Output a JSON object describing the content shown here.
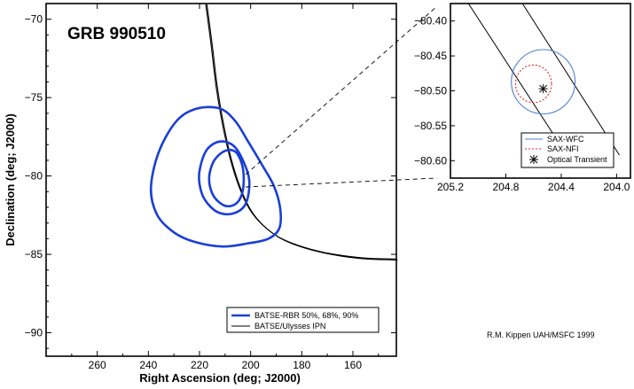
{
  "chart_data": [
    {
      "type": "line",
      "title": "GRB 990510",
      "xlabel": "Right Ascension (deg; J2000)",
      "ylabel": "Declination (deg; J2000)",
      "xlim": [
        280,
        143
      ],
      "ylim": [
        -91.5,
        -69
      ],
      "xticks": [
        260,
        240,
        220,
        200,
        180,
        160
      ],
      "yticks": [
        -70,
        -75,
        -80,
        -85,
        -90
      ],
      "xtick_labels": [
        "260",
        "240",
        "220",
        "200",
        "180",
        "160"
      ],
      "ytick_labels": [
        "−70",
        "−75",
        "−80",
        "−85",
        "−90"
      ],
      "grid": false,
      "legend_position": "bottom-right",
      "legend": [
        "BATSE-RBR 50%, 68%, 90%",
        "BATSE/Ulysses IPN"
      ],
      "colors": {
        "batse": "#1a3fd6",
        "ipn": "#000000"
      },
      "series": [
        {
          "name": "BATSE-RBR 50%, 68%, 90%",
          "style": "contours",
          "contours": [
            {
              "level": "50%",
              "points": [
                [
                  216,
                  -79.8
                ],
                [
                  214,
                  -78.95
                ],
                [
                  210,
                  -78.4
                ],
                [
                  206,
                  -78.45
                ],
                [
                  203.5,
                  -79.2
                ],
                [
                  202.7,
                  -80.2
                ],
                [
                  203.5,
                  -81.2
                ],
                [
                  206,
                  -81.8
                ],
                [
                  210,
                  -81.9
                ],
                [
                  214,
                  -81.4
                ],
                [
                  216,
                  -80.6
                ],
                [
                  216,
                  -79.8
                ]
              ]
            },
            {
              "level": "68%",
              "points": [
                [
                  219.8,
                  -79.5
                ],
                [
                  217,
                  -78.3
                ],
                [
                  212,
                  -77.8
                ],
                [
                  206.5,
                  -78.1
                ],
                [
                  202.5,
                  -79.2
                ],
                [
                  200.5,
                  -80.4
                ],
                [
                  202,
                  -81.8
                ],
                [
                  207,
                  -82.4
                ],
                [
                  213,
                  -82.3
                ],
                [
                  218,
                  -81.5
                ],
                [
                  220,
                  -80.5
                ],
                [
                  219.8,
                  -79.5
                ]
              ]
            },
            {
              "level": "90%",
              "points": [
                [
                  239,
                  -80.8
                ],
                [
                  236,
                  -78.5
                ],
                [
                  229,
                  -76.5
                ],
                [
                  221,
                  -75.7
                ],
                [
                  212,
                  -75.7
                ],
                [
                  206,
                  -76.5
                ],
                [
                  201,
                  -77.8
                ],
                [
                  195.5,
                  -79.3
                ],
                [
                  191,
                  -80.6
                ],
                [
                  188.5,
                  -82
                ],
                [
                  188.7,
                  -83.3
                ],
                [
                  193,
                  -84
                ],
                [
                  201,
                  -84.3
                ],
                [
                  211,
                  -84.5
                ],
                [
                  222,
                  -84.2
                ],
                [
                  230,
                  -83.6
                ],
                [
                  236.5,
                  -82.5
                ],
                [
                  239,
                  -80.8
                ]
              ]
            }
          ]
        },
        {
          "name": "BATSE/Ulysses IPN",
          "style": "annulus",
          "points": [
            [
              217.6,
              -69
            ],
            [
              215.5,
              -71.6
            ],
            [
              213.5,
              -74.3
            ],
            [
              211,
              -76.7
            ],
            [
              208,
              -78.9
            ],
            [
              204.5,
              -80.7
            ],
            [
              200.5,
              -82.1
            ],
            [
              195.5,
              -83.1
            ],
            [
              189,
              -83.9
            ],
            [
              181,
              -84.45
            ],
            [
              172,
              -84.85
            ],
            [
              163,
              -85.1
            ],
            [
              154,
              -85.25
            ],
            [
              143,
              -85.3
            ]
          ],
          "offset": [
            -0.5,
            -0.06
          ]
        }
      ],
      "annotation": "R.M. Kippen  UAH/MSFC 1999"
    },
    {
      "type": "line",
      "title": "",
      "xlabel": "",
      "ylabel": "",
      "xlim": [
        205.2,
        203.9
      ],
      "ylim": [
        -80.625,
        -80.375
      ],
      "xticks": [
        205.2,
        204.8,
        204.4,
        204.0
      ],
      "yticks": [
        -80.4,
        -80.45,
        -80.5,
        -80.55,
        -80.6
      ],
      "xtick_labels": [
        "205.2",
        "204.8",
        "204.4",
        "204.0"
      ],
      "ytick_labels": [
        "−80.40",
        "−80.45",
        "−80.50",
        "−80.55",
        "−80.60"
      ],
      "grid": false,
      "legend_position": "bottom-right",
      "legend": [
        "SAX-WFC",
        "SAX-NFI",
        "Optical Transient"
      ],
      "colors": {
        "wfc": "#4f7fd4",
        "nfi": "#e0242a",
        "ot": "#000000"
      },
      "series": [
        {
          "name": "SAX-WFC",
          "style": "ellipse",
          "center": [
            204.53,
            -80.487
          ],
          "radius_x": 0.23,
          "radius_y": 0.046
        },
        {
          "name": "SAX-NFI",
          "style": "ellipse",
          "center": [
            204.6,
            -80.49
          ],
          "radius_x": 0.13,
          "radius_y": 0.027
        },
        {
          "name": "Optical Transient",
          "style": "marker",
          "x": [
            204.53
          ],
          "y": [
            -80.497
          ]
        },
        {
          "name": "IPN line A",
          "style": "line",
          "points": [
            [
              205.07,
              -80.375
            ],
            [
              204.3,
              -80.61
            ]
          ]
        },
        {
          "name": "IPN line B",
          "style": "line",
          "points": [
            [
              204.68,
              -80.375
            ],
            [
              203.98,
              -80.592
            ]
          ]
        }
      ]
    }
  ],
  "credit": "R.M. Kippen  UAH/MSFC 1999"
}
